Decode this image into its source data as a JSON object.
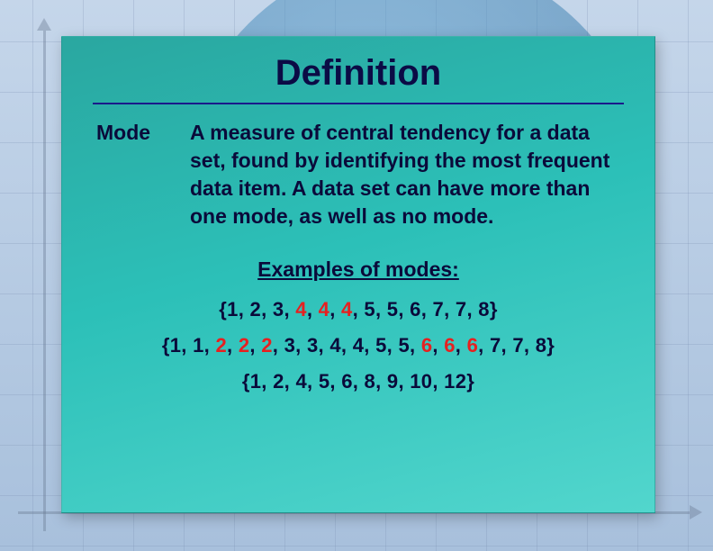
{
  "background": {
    "page_bg": "#b8cce4",
    "grid_color": "rgba(120,140,175,0.25)",
    "circle_gradient_from": "#5fa4d0",
    "circle_gradient_to": "#3a7aaa",
    "axis_color": "#6a7a94"
  },
  "card": {
    "gradient_from": "#2aa7a0",
    "gradient_mid": "#2cc0b8",
    "gradient_to": "#52d6cd",
    "title": "Definition",
    "title_color": "#0b0b45",
    "title_fontsize": 40,
    "rule_color": "#1a1a8a",
    "text_color": "#0a0a3a",
    "body_fontsize": 23,
    "highlight_color": "#e62020"
  },
  "term": "Mode",
  "definition": "A measure of central tendency for a data set, found by identifying the most frequent data item. A data set can have more than one mode, as well as no mode.",
  "examples_heading": "Examples of modes:",
  "examples": [
    {
      "tokens": [
        {
          "t": "{1, "
        },
        {
          "t": "2, "
        },
        {
          "t": "3, "
        },
        {
          "t": "4",
          "hl": true
        },
        {
          "t": ", "
        },
        {
          "t": "4",
          "hl": true
        },
        {
          "t": ", "
        },
        {
          "t": "4",
          "hl": true
        },
        {
          "t": ", "
        },
        {
          "t": "5, "
        },
        {
          "t": "5, "
        },
        {
          "t": "6, "
        },
        {
          "t": "7, "
        },
        {
          "t": "7, "
        },
        {
          "t": "8}"
        }
      ]
    },
    {
      "tokens": [
        {
          "t": "{1, "
        },
        {
          "t": "1, "
        },
        {
          "t": "2",
          "hl": true
        },
        {
          "t": ", "
        },
        {
          "t": "2",
          "hl": true
        },
        {
          "t": ", "
        },
        {
          "t": "2",
          "hl": true
        },
        {
          "t": ", "
        },
        {
          "t": "3, "
        },
        {
          "t": "3, "
        },
        {
          "t": "4, "
        },
        {
          "t": "4, "
        },
        {
          "t": "5, "
        },
        {
          "t": "5, "
        },
        {
          "t": "6",
          "hl": true
        },
        {
          "t": ", "
        },
        {
          "t": "6",
          "hl": true
        },
        {
          "t": ", "
        },
        {
          "t": "6",
          "hl": true
        },
        {
          "t": ", "
        },
        {
          "t": "7, "
        },
        {
          "t": "7, "
        },
        {
          "t": "8}"
        }
      ]
    },
    {
      "tokens": [
        {
          "t": "{1, 2, 4, 5, 6, 8, 9, 10, 12}"
        }
      ]
    }
  ]
}
